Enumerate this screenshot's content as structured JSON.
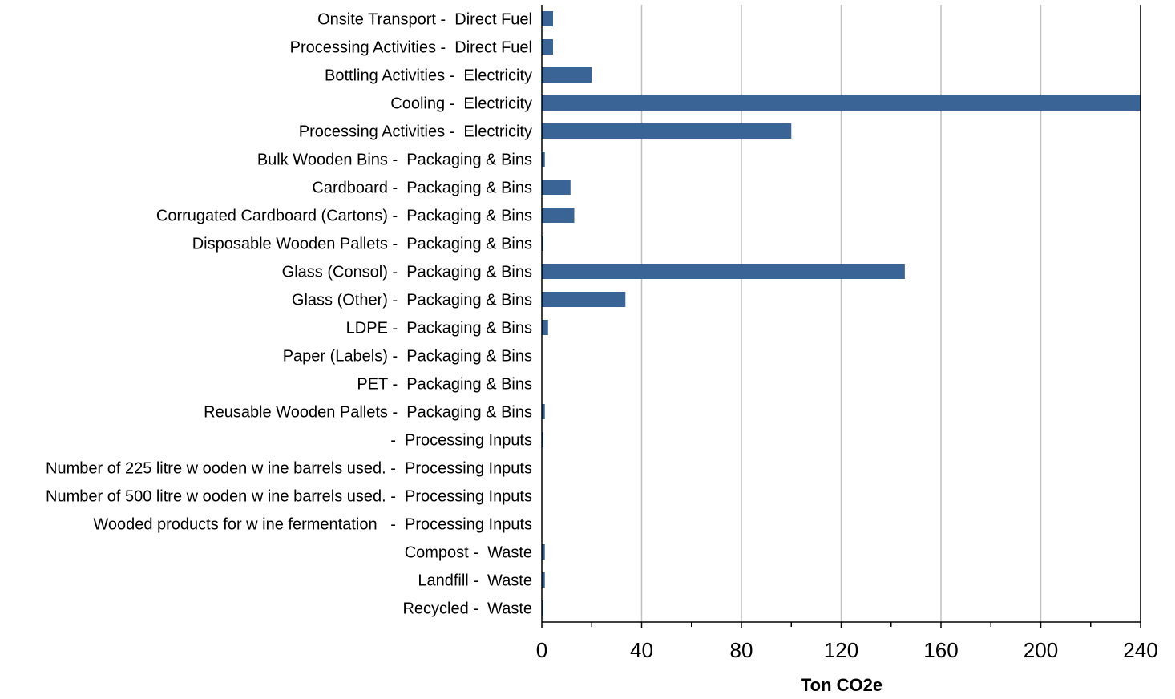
{
  "chart_data": {
    "type": "bar",
    "orientation": "horizontal",
    "title": "",
    "xlabel": "Ton CO2e",
    "ylabel": "",
    "xlim": [
      0,
      240
    ],
    "xticks": [
      "0",
      "40",
      "80",
      "120",
      "160",
      "200",
      "240"
    ],
    "grid": "vertical",
    "legend": "none",
    "bar_color": "#3b6496",
    "grid_color": "#c0c0c0",
    "categories": [
      "Onsite Transport -  Direct Fuel",
      "Processing Activities -  Direct Fuel",
      "Bottling Activities -  Electricity",
      "Cooling -  Electricity",
      "Processing Activities -  Electricity",
      "Bulk Wooden Bins -  Packaging & Bins",
      "Cardboard -  Packaging & Bins",
      "Corrugated Cardboard (Cartons) -  Packaging & Bins",
      "Disposable Wooden Pallets -  Packaging & Bins",
      "Glass (Consol) -  Packaging & Bins",
      "Glass (Other) -  Packaging & Bins",
      "LDPE -  Packaging & Bins",
      "Paper (Labels) -  Packaging & Bins",
      "PET -  Packaging & Bins",
      "Reusable Wooden Pallets -  Packaging & Bins",
      " -  Processing Inputs",
      "Number of 225 litre w ooden w ine barrels used. -  Processing Inputs",
      "Number of 500 litre w ooden w ine barrels used. -  Processing Inputs",
      "Wooded products for w ine fermentation   -  Processing Inputs",
      "Compost -  Waste",
      "Landfill -  Waste",
      "Recycled -  Waste"
    ],
    "values": [
      4.5,
      4.5,
      20,
      240,
      100,
      1.2,
      11.5,
      13,
      0.5,
      145.5,
      33.5,
      2.5,
      0,
      0,
      1.2,
      0.5,
      0,
      0,
      0,
      1.2,
      1.2,
      0.5
    ]
  }
}
